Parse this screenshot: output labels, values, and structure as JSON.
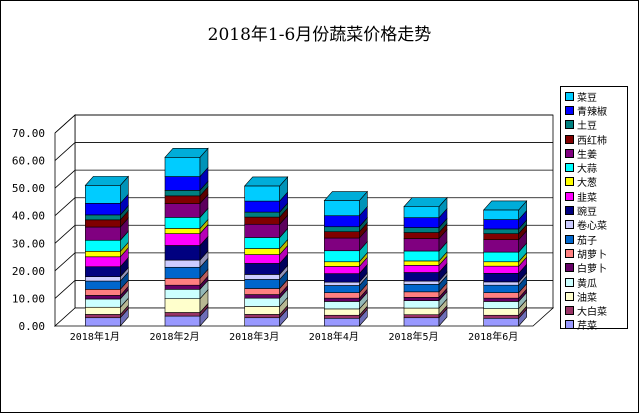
{
  "chart_data": {
    "type": "bar",
    "stacked": true,
    "three_d": true,
    "title": "2018年1-6月份蔬菜价格走势",
    "xlabel": "",
    "ylabel": "",
    "ylim": [
      0,
      70
    ],
    "yticks": [
      "0.00",
      "10.00",
      "20.00",
      "30.00",
      "40.00",
      "50.00",
      "60.00",
      "70.00"
    ],
    "grid": true,
    "legend_position": "right",
    "categories": [
      "2018年1月",
      "2018年2月",
      "2018年3月",
      "2018年4月",
      "2018年5月",
      "2018年6月"
    ],
    "series": [
      {
        "name": "芹菜",
        "color": "#9999FF",
        "values": [
          3.0,
          3.6,
          3.0,
          2.8,
          3.0,
          2.8
        ]
      },
      {
        "name": "大白菜",
        "color": "#993366",
        "values": [
          1.2,
          1.3,
          1.2,
          1.1,
          1.1,
          1.1
        ]
      },
      {
        "name": "油菜",
        "color": "#FFFFCC",
        "values": [
          2.6,
          5.0,
          2.9,
          2.3,
          2.4,
          2.4
        ]
      },
      {
        "name": "黄瓜",
        "color": "#CCFFFF",
        "values": [
          3.0,
          3.4,
          3.0,
          2.7,
          2.7,
          2.6
        ]
      },
      {
        "name": "白萝卜",
        "color": "#660066",
        "values": [
          1.3,
          1.5,
          1.3,
          1.2,
          1.2,
          1.2
        ]
      },
      {
        "name": "胡萝卜",
        "color": "#FF8080",
        "values": [
          2.2,
          2.5,
          2.2,
          2.0,
          2.0,
          2.0
        ]
      },
      {
        "name": "茄子",
        "color": "#0066CC",
        "values": [
          3.0,
          4.0,
          3.3,
          2.6,
          2.7,
          2.7
        ]
      },
      {
        "name": "卷心菜",
        "color": "#CCCCFF",
        "values": [
          1.6,
          2.6,
          1.8,
          1.2,
          1.2,
          1.2
        ]
      },
      {
        "name": "豌豆",
        "color": "#000080",
        "values": [
          3.6,
          5.3,
          4.0,
          3.1,
          3.1,
          3.1
        ]
      },
      {
        "name": "韭菜",
        "color": "#FF00FF",
        "values": [
          3.6,
          4.3,
          3.2,
          2.6,
          2.6,
          2.6
        ]
      },
      {
        "name": "大葱",
        "color": "#FFFF00",
        "values": [
          2.0,
          1.9,
          2.2,
          1.7,
          1.6,
          1.6
        ]
      },
      {
        "name": "大蒜",
        "color": "#00FFFF",
        "values": [
          4.0,
          4.0,
          4.0,
          4.0,
          3.6,
          3.5
        ]
      },
      {
        "name": "生姜",
        "color": "#800080",
        "values": [
          4.8,
          5.0,
          4.8,
          4.6,
          4.5,
          4.5
        ]
      },
      {
        "name": "西红柿",
        "color": "#800000",
        "values": [
          2.6,
          2.8,
          2.6,
          2.3,
          2.2,
          2.2
        ]
      },
      {
        "name": "土豆",
        "color": "#008080",
        "values": [
          1.8,
          2.0,
          1.8,
          1.8,
          1.8,
          1.7
        ]
      },
      {
        "name": "青辣椒",
        "color": "#0000FF",
        "values": [
          4.2,
          5.0,
          4.0,
          4.0,
          3.6,
          3.4
        ]
      },
      {
        "name": "菜豆",
        "color": "#00CCFF",
        "values": [
          6.5,
          7.0,
          5.5,
          5.5,
          4.0,
          3.5
        ]
      }
    ]
  }
}
